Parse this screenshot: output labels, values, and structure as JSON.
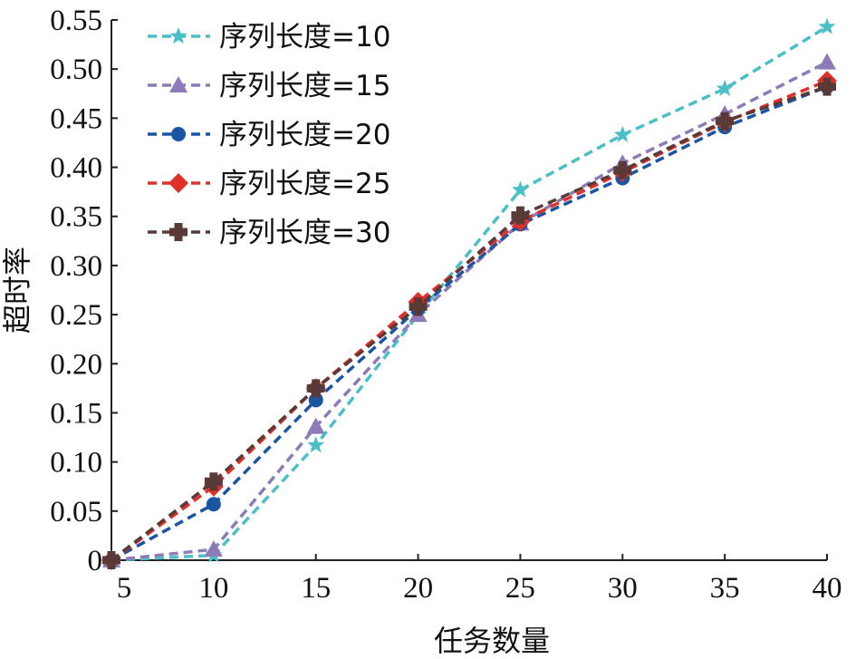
{
  "chart_data": {
    "type": "line",
    "xlabel": "任务数量",
    "ylabel": "超时率",
    "x": [
      5,
      10,
      15,
      20,
      25,
      30,
      35,
      40
    ],
    "xticks": [
      "5",
      "10",
      "15",
      "20",
      "25",
      "30",
      "35",
      "40"
    ],
    "yticks": [
      "0",
      "0.05",
      "0.10",
      "0.15",
      "0.20",
      "0.25",
      "0.30",
      "0.35",
      "0.40",
      "0.45",
      "0.50",
      "0.55"
    ],
    "xlim": [
      5,
      40
    ],
    "ylim": [
      0,
      0.55
    ],
    "legend_position": "top-left",
    "grid": false,
    "series": [
      {
        "name": "序列长度=10",
        "color": "#4bbfc8",
        "marker": "star",
        "values": [
          0,
          0.005,
          0.117,
          0.25,
          0.377,
          0.433,
          0.48,
          0.543
        ]
      },
      {
        "name": "序列长度=15",
        "color": "#8c7bb8",
        "marker": "triangle",
        "values": [
          0,
          0.011,
          0.136,
          0.25,
          0.343,
          0.404,
          0.454,
          0.507
        ]
      },
      {
        "name": "序列长度=20",
        "color": "#1a55a3",
        "marker": "circle",
        "values": [
          0,
          0.057,
          0.163,
          0.256,
          0.342,
          0.389,
          0.441,
          0.482
        ]
      },
      {
        "name": "序列长度=25",
        "color": "#e0302a",
        "marker": "diamond",
        "values": [
          0,
          0.075,
          0.175,
          0.263,
          0.345,
          0.395,
          0.446,
          0.488
        ]
      },
      {
        "name": "序列长度=30",
        "color": "#5a3a36",
        "marker": "plus",
        "values": [
          0,
          0.08,
          0.175,
          0.258,
          0.351,
          0.397,
          0.447,
          0.482
        ]
      }
    ]
  }
}
